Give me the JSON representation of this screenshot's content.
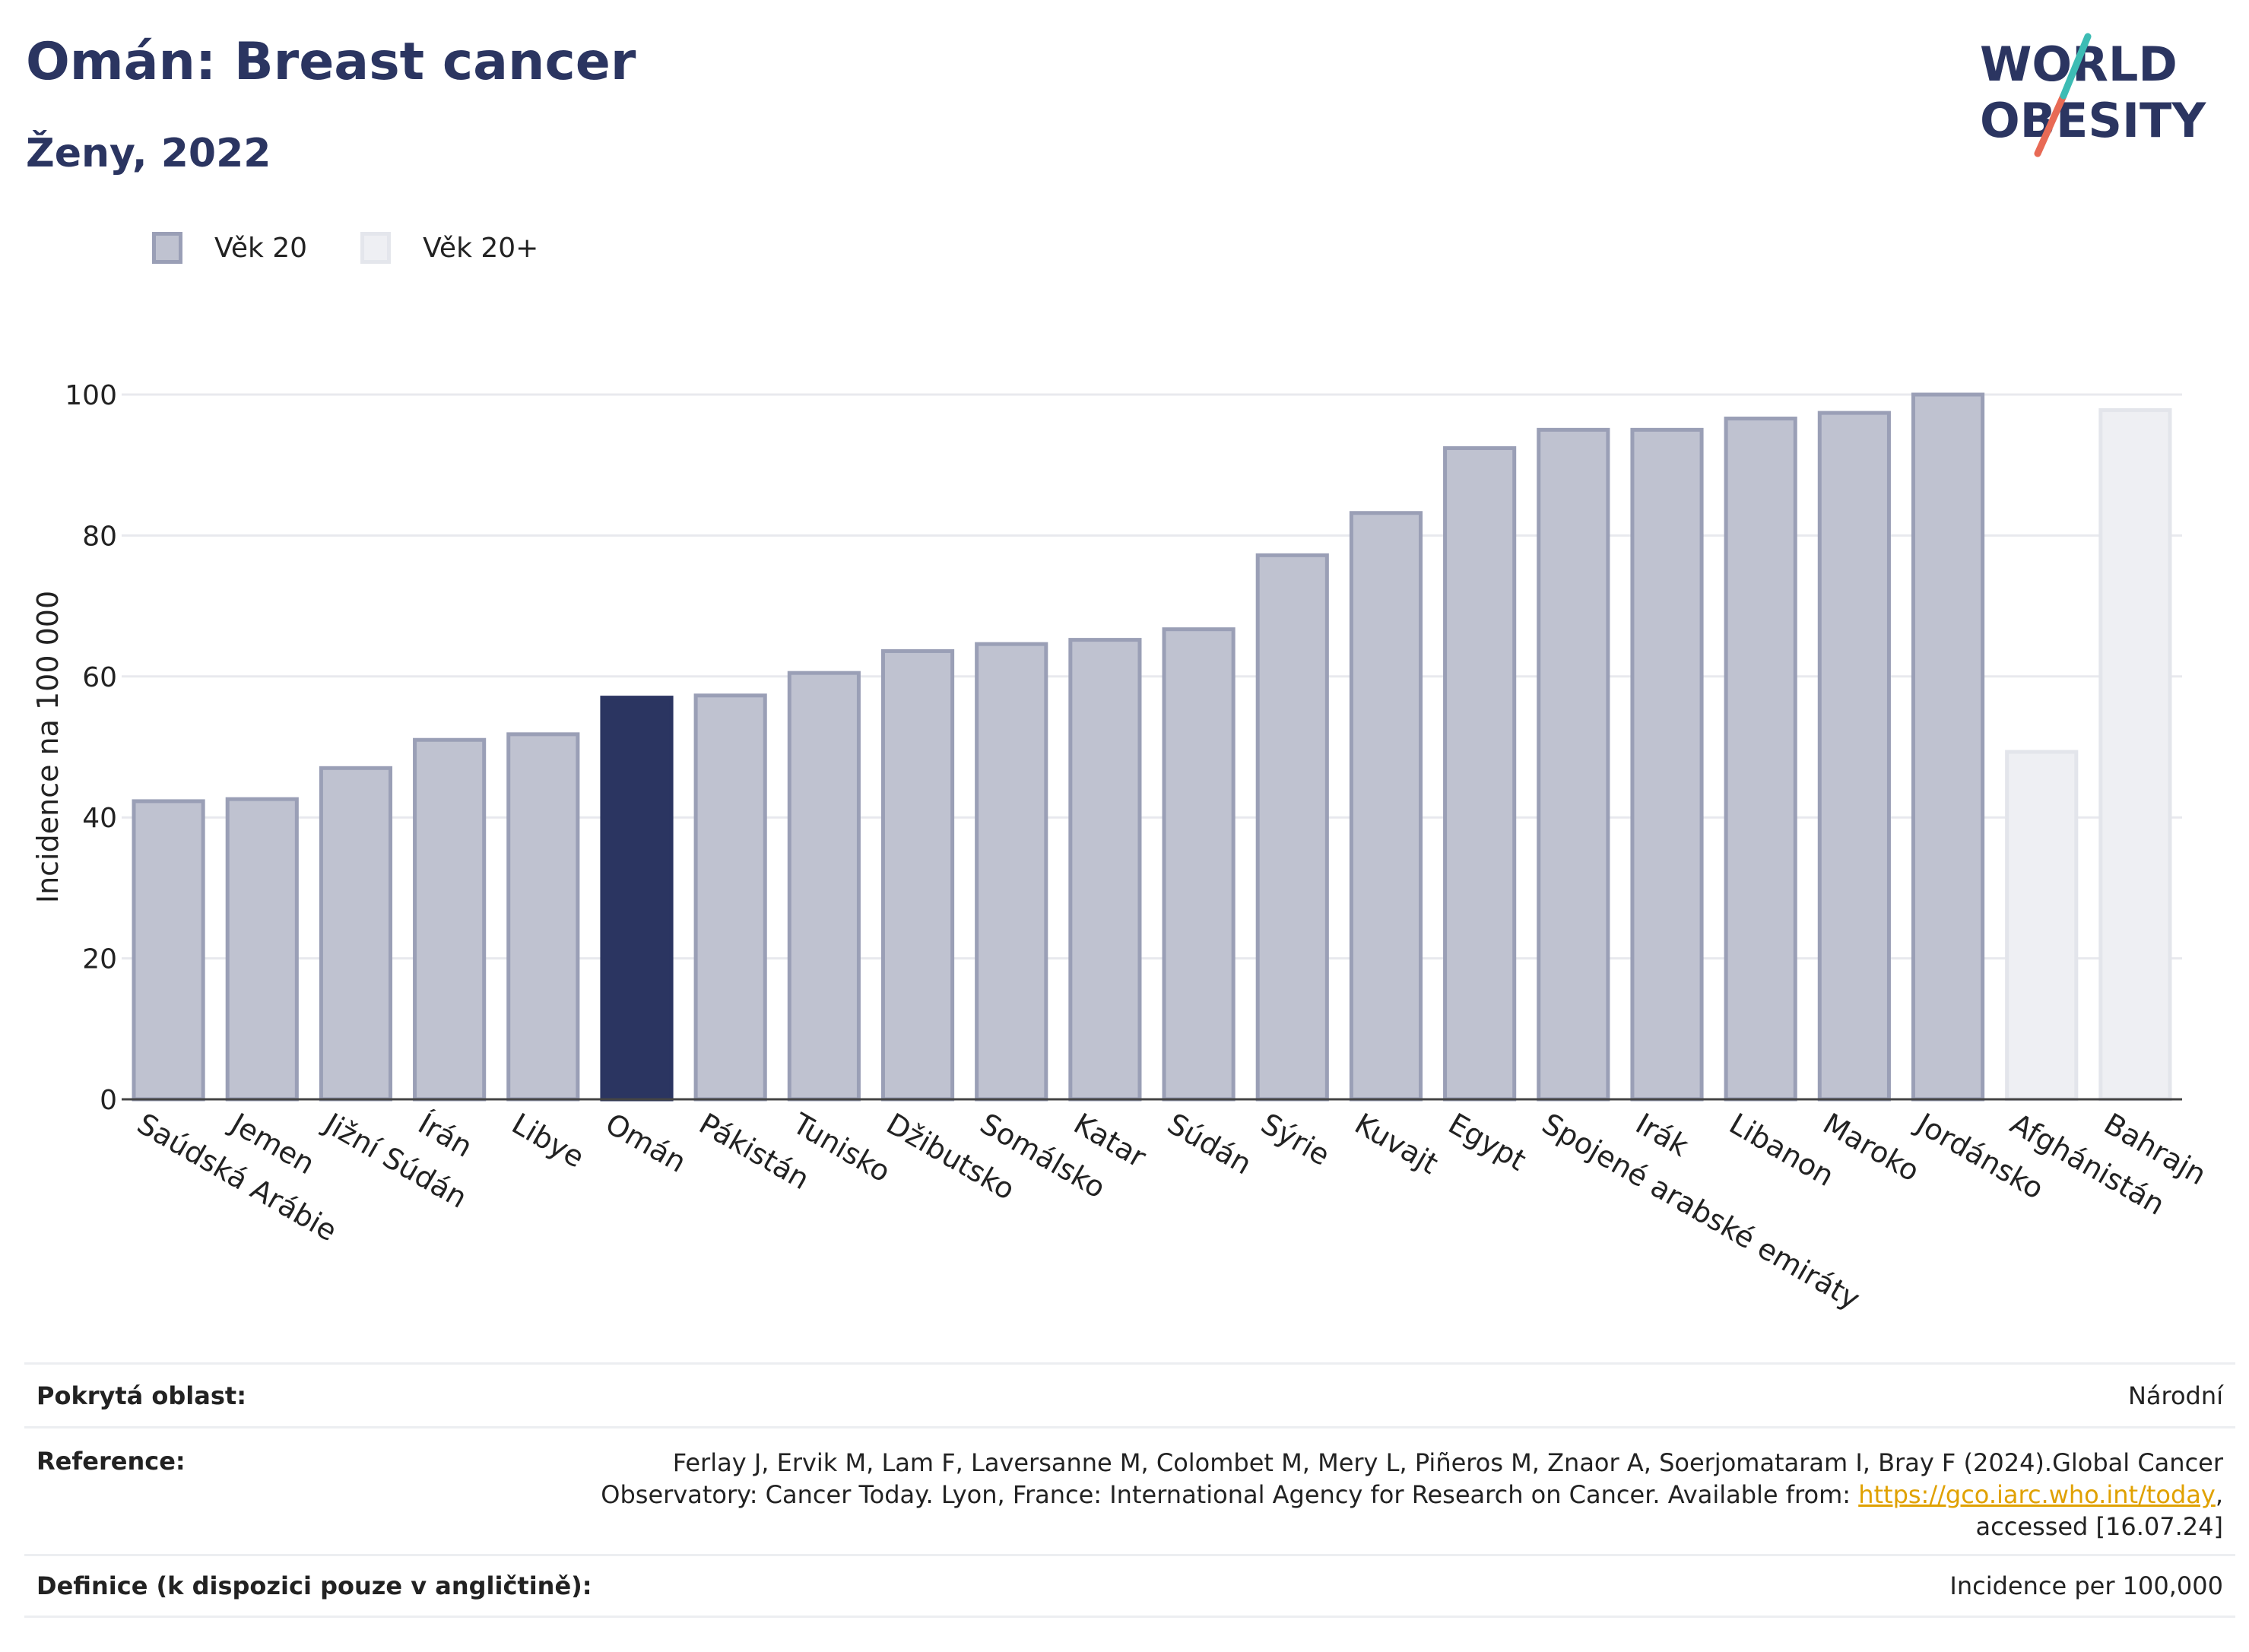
{
  "header": {
    "title": "Omán: Breast cancer",
    "subtitle": "Ženy, 2022"
  },
  "logo": {
    "line1": "WORLD",
    "line2": "OBESITY"
  },
  "legend": [
    {
      "label": "Věk 20",
      "color": "#bfc2d0"
    },
    {
      "label": "Věk 20+",
      "color": "#eeeff3"
    }
  ],
  "chart_data": {
    "type": "bar",
    "ylabel": "Incidence na 100 000",
    "xlabel": "",
    "ylim": [
      0,
      105
    ],
    "yticks": [
      0,
      20,
      40,
      60,
      80,
      100
    ],
    "grid": true,
    "legend_position": "top-left",
    "highlight_color": "#2b3561",
    "series_colors": {
      "Věk 20": "#bfc2d0",
      "Věk 20+": "#eeeff3"
    },
    "categories": [
      "Saúdská Arábie",
      "Jemen",
      "Jižní Súdán",
      "Írán",
      "Libye",
      "Omán",
      "Pákistán",
      "Tunisko",
      "Džibutsko",
      "Somálsko",
      "Katar",
      "Súdán",
      "Sýrie",
      "Kuvajt",
      "Egypt",
      "Spojené arabské emiráty",
      "Irák",
      "Libanon",
      "Maroko",
      "Jordánsko",
      "Afghánistán",
      "Bahrajn"
    ],
    "values": [
      42.3,
      42.6,
      47.0,
      51.0,
      51.8,
      57.0,
      57.3,
      60.5,
      63.6,
      64.6,
      65.2,
      66.7,
      77.2,
      83.2,
      92.4,
      95.0,
      95.0,
      96.6,
      97.4,
      100.0,
      49.3,
      97.8
    ],
    "series": [
      "Věk 20",
      "Věk 20",
      "Věk 20",
      "Věk 20",
      "Věk 20",
      "Věk 20",
      "Věk 20",
      "Věk 20",
      "Věk 20",
      "Věk 20",
      "Věk 20",
      "Věk 20",
      "Věk 20",
      "Věk 20",
      "Věk 20",
      "Věk 20",
      "Věk 20",
      "Věk 20",
      "Věk 20",
      "Věk 20",
      "Věk 20+",
      "Věk 20+"
    ],
    "highlight": "Omán"
  },
  "footer": {
    "coverage_label": "Pokrytá oblast:",
    "coverage_value": "Národní",
    "reference_label": "Reference:",
    "reference_line1": "Ferlay J, Ervik M, Lam F, Laversanne M, Colombet M, Mery L, Piñeros M, Znaor A, Soerjomataram I, Bray F (2024).Global Cancer",
    "reference_line2": "Observatory: Cancer Today. Lyon, France: International Agency for Research on Cancer. Available from: ",
    "reference_link": "https://gco.iarc.who.int/today",
    "reference_line2_end": ",",
    "reference_line3": "accessed [16.07.24]",
    "definition_label": "Definice (k dispozici pouze v angličtině):",
    "definition_value": "Incidence per 100,000"
  }
}
